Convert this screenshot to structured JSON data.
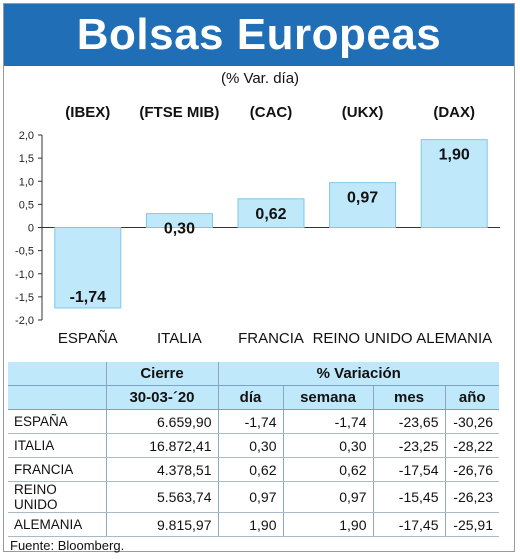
{
  "title": "Bolsas Europeas",
  "subtitle": "(% Var. día)",
  "chart_data": {
    "type": "bar",
    "categories": [
      "ESPAÑA",
      "ITALIA",
      "FRANCIA",
      "REINO UNIDO",
      "ALEMANIA"
    ],
    "indices": [
      "(IBEX)",
      "(FTSE MIB)",
      "(CAC)",
      "(UKX)",
      "(DAX)"
    ],
    "values": [
      -1.74,
      0.3,
      0.62,
      0.97,
      1.9
    ],
    "data_labels": [
      "-1,74",
      "0,30",
      "0,62",
      "0,97",
      "1,90"
    ],
    "ylim": [
      -2.0,
      2.0
    ],
    "yticks": [
      "2,0",
      "1,5",
      "1,0",
      "0,5",
      "0",
      "-0,5",
      "-1,0",
      "-1,5",
      "-2,0"
    ],
    "bar_color": "#bfe9fb",
    "bar_border_color": "#7fc7e6",
    "grid": false
  },
  "table": {
    "header_group_cierre": "Cierre",
    "header_group_variacion": "% Variación",
    "header_date": "30-03-´20",
    "header_dia": "día",
    "header_semana": "semana",
    "header_mes": "mes",
    "header_ano": "año",
    "rows": [
      {
        "name": "ESPAÑA",
        "cierre": "6.659,90",
        "dia": "-1,74",
        "semana": "-1,74",
        "mes": "-23,65",
        "ano": "-30,26"
      },
      {
        "name": "ITALIA",
        "cierre": "16.872,41",
        "dia": "0,30",
        "semana": "0,30",
        "mes": "-23,25",
        "ano": "-28,22"
      },
      {
        "name": "FRANCIA",
        "cierre": "4.378,51",
        "dia": "0,62",
        "semana": "0,62",
        "mes": "-17,54",
        "ano": "-26,76"
      },
      {
        "name": "REINO UNIDO",
        "cierre": "5.563,74",
        "dia": "0,97",
        "semana": "0,97",
        "mes": "-15,45",
        "ano": "-26,23"
      },
      {
        "name": "ALEMANIA",
        "cierre": "9.815,97",
        "dia": "1,90",
        "semana": "1,90",
        "mes": "-17,45",
        "ano": "-25,91"
      }
    ]
  },
  "source": "Fuente: Bloomberg.",
  "colors": {
    "header_bg": "#1f6eb6",
    "table_header_bg": "#bfe9fb"
  }
}
